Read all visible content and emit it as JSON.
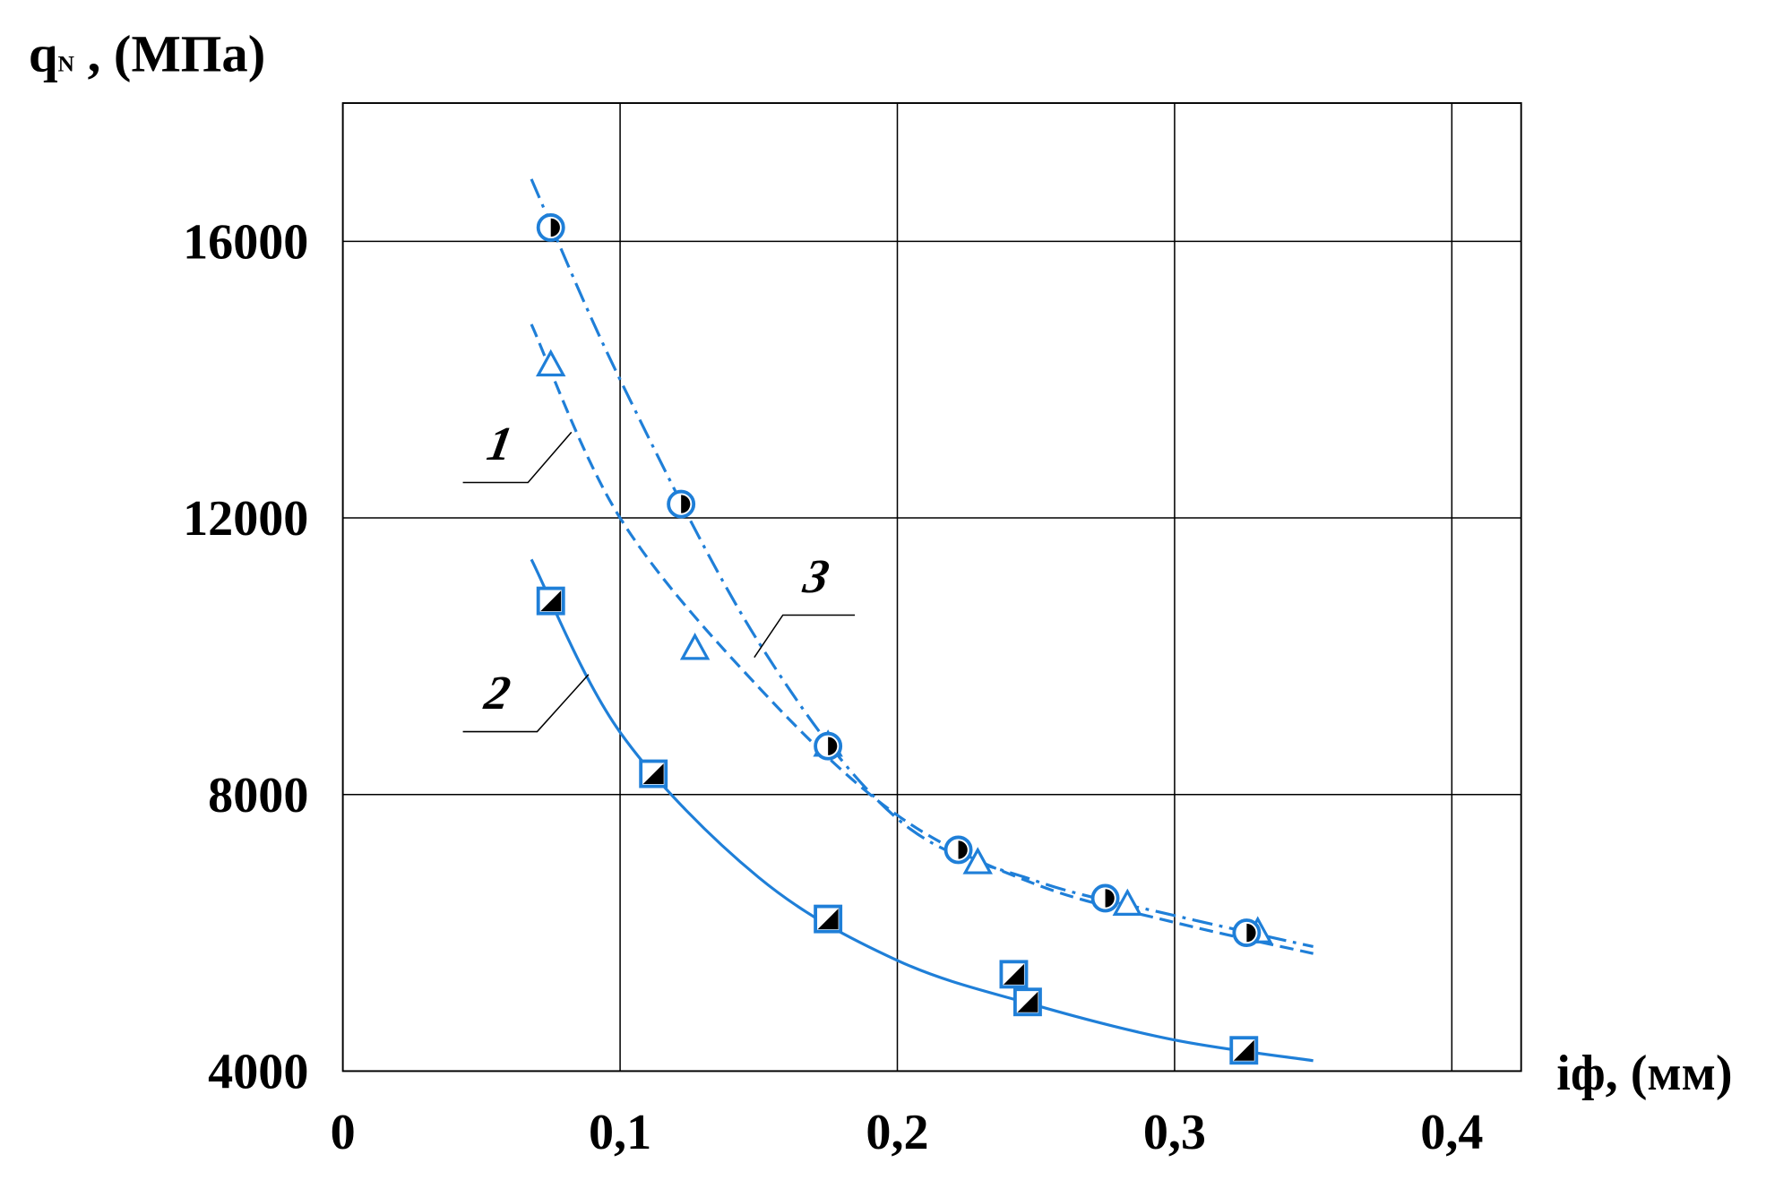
{
  "chart_data": {
    "type": "line",
    "y_label": {
      "main": "q",
      "sub": "N",
      "unit": " , (МПа)"
    },
    "x_label": "iф, (мм)",
    "xlim": [
      0,
      0.425
    ],
    "ylim": [
      4000,
      18000
    ],
    "xticks": [
      0,
      {
        "value": 0.1,
        "label": "0,1"
      },
      {
        "value": 0.2,
        "label": "0,2"
      },
      {
        "value": 0.3,
        "label": "0,3"
      },
      {
        "value": 0.4,
        "label": "0,4"
      }
    ],
    "yticks": [
      4000,
      8000,
      12000,
      16000
    ],
    "grid": true,
    "series": [
      {
        "name": "1",
        "color": "#1f7fd8",
        "marker": "triangle",
        "line_style": "dashed",
        "x": [
          0.075,
          0.127,
          0.175,
          0.229,
          0.283,
          0.33
        ],
        "values": [
          14200,
          10100,
          8700,
          7000,
          6400,
          6000
        ],
        "fit_x": [
          0.068,
          0.1,
          0.15,
          0.2,
          0.25,
          0.3,
          0.35
        ],
        "fit_values": [
          14800,
          12000,
          9550,
          7700,
          6700,
          6150,
          5700
        ]
      },
      {
        "name": "2",
        "color": "#1f7fd8",
        "marker": "square",
        "line_style": "solid",
        "x": [
          0.075,
          0.112,
          0.175,
          0.242,
          0.247,
          0.325
        ],
        "values": [
          10800,
          8300,
          6200,
          5400,
          5000,
          4300
        ],
        "fit_x": [
          0.068,
          0.1,
          0.15,
          0.2,
          0.25,
          0.3,
          0.35
        ],
        "fit_values": [
          11400,
          8900,
          6800,
          5600,
          4950,
          4450,
          4150
        ]
      },
      {
        "name": "3",
        "color": "#1f7fd8",
        "marker": "circle",
        "line_style": "dash-dot",
        "x": [
          0.075,
          0.122,
          0.175,
          0.222,
          0.275,
          0.326
        ],
        "values": [
          16200,
          12200,
          8700,
          7200,
          6500,
          6000
        ],
        "fit_x": [
          0.068,
          0.1,
          0.15,
          0.2,
          0.25,
          0.3,
          0.35
        ],
        "fit_values": [
          16900,
          14000,
          10200,
          7650,
          6750,
          6250,
          5800
        ]
      }
    ]
  }
}
